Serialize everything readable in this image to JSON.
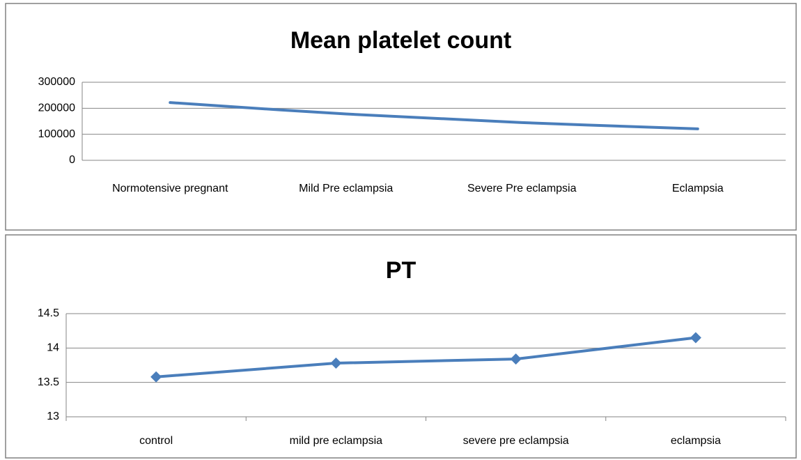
{
  "chart_data": [
    {
      "type": "line",
      "title": "Mean platelet count",
      "categories": [
        "Normotensive pregnant",
        "Mild Pre eclampsia",
        "Severe Pre eclampsia",
        "Eclampsia"
      ],
      "values": [
        222000,
        178000,
        145000,
        121000
      ],
      "color": "#4a7ebb",
      "smooth": true,
      "markers": false,
      "grid": true,
      "ylim": [
        0,
        300000
      ],
      "yticks": [
        0,
        100000,
        200000,
        300000
      ]
    },
    {
      "type": "line",
      "title": "PT",
      "categories": [
        "control",
        "mild pre eclampsia",
        "severe pre eclampsia",
        "eclampsia"
      ],
      "values": [
        13.58,
        13.78,
        13.84,
        14.15
      ],
      "color": "#4a7ebb",
      "smooth": false,
      "markers": true,
      "grid": true,
      "ylim": [
        13,
        14.5
      ],
      "yticks": [
        13,
        13.5,
        14,
        14.5
      ]
    }
  ]
}
